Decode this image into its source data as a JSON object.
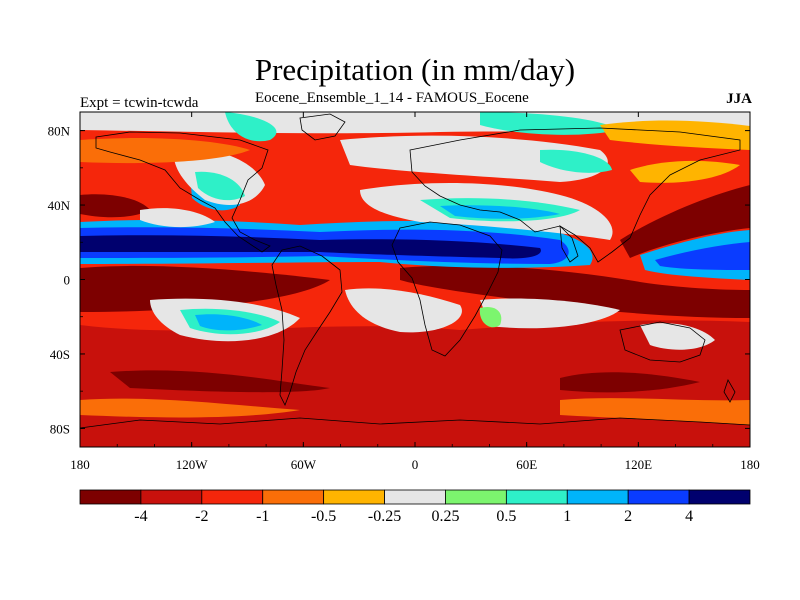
{
  "title": "Precipitation (in mm/day)",
  "subtitle": "Eocene_Ensemble_1_14 - FAMOUS_Eocene",
  "left_label": "Expt = tcwin-tcwda",
  "season": "JJA",
  "colors": {
    "below_minus4": "#7d0000",
    "minus4_minus2": "#c8110c",
    "minus2_minus1": "#f5260b",
    "minus1_minus05": "#fa6e08",
    "minus05_minus025": "#ffb400",
    "neutral": "#e6e6e6",
    "p025_p05": "#7cf56e",
    "p05_p1": "#2ef0c8",
    "p1_p2": "#00b4fa",
    "p2_p4": "#0a3cff",
    "above_p4": "#00006e"
  },
  "colorbar": {
    "labels": [
      "-4",
      "-2",
      "-1",
      "-0.5",
      "-0.25",
      "0.25",
      "0.5",
      "1",
      "2",
      "4"
    ],
    "colors": [
      "#7d0000",
      "#c8110c",
      "#f5260b",
      "#fa6e08",
      "#ffb400",
      "#e6e6e6",
      "#7cf56e",
      "#2ef0c8",
      "#00b4fa",
      "#0a3cff",
      "#00006e"
    ]
  },
  "axes": {
    "x_ticks": [
      "180",
      "120W",
      "60W",
      "0",
      "60E",
      "120E",
      "180"
    ],
    "y_ticks": [
      "80N",
      "40N",
      "0",
      "40S",
      "80S"
    ]
  },
  "chart_data": {
    "type": "heatmap",
    "title": "Precipitation (in mm/day)",
    "subtitle": "Eocene_Ensemble_1_14 - FAMOUS_Eocene",
    "xlim": [
      -180,
      180
    ],
    "ylim": [
      -90,
      90
    ],
    "x_ticks": [
      -180,
      -120,
      -60,
      0,
      60,
      120,
      180
    ],
    "y_ticks": [
      80,
      40,
      0,
      -40,
      -80
    ],
    "levels": [
      -4,
      -2,
      -1,
      -0.5,
      -0.25,
      0.25,
      0.5,
      1,
      2,
      4
    ]
  }
}
